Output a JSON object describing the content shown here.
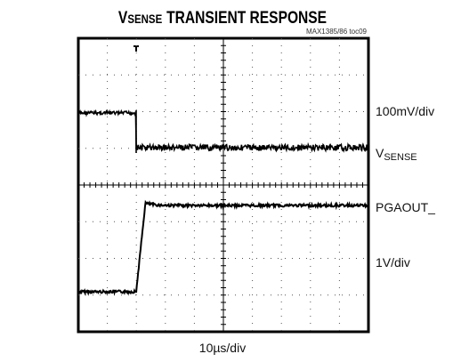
{
  "header": {
    "title": {
      "main": "V",
      "sub": "SENSE",
      "rest": "TRANSIENT RESPONSE"
    },
    "code": "MAX1385/86 toc09"
  },
  "labels": {
    "top_scale": "100mV/div",
    "top_trace": {
      "main": "V",
      "sub": "SENSE"
    },
    "bottom_trace": "PGAOUT_",
    "bottom_scale": "1V/div",
    "time_scale": "10µs/div"
  }
}
